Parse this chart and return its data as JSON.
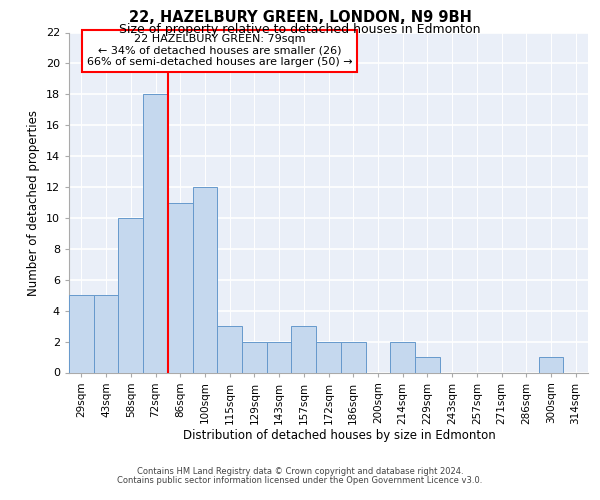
{
  "title1": "22, HAZELBURY GREEN, LONDON, N9 9BH",
  "title2": "Size of property relative to detached houses in Edmonton",
  "xlabel": "Distribution of detached houses by size in Edmonton",
  "ylabel": "Number of detached properties",
  "bar_labels": [
    "29sqm",
    "43sqm",
    "58sqm",
    "72sqm",
    "86sqm",
    "100sqm",
    "115sqm",
    "129sqm",
    "143sqm",
    "157sqm",
    "172sqm",
    "186sqm",
    "200sqm",
    "214sqm",
    "229sqm",
    "243sqm",
    "257sqm",
    "271sqm",
    "286sqm",
    "300sqm",
    "314sqm"
  ],
  "bar_values": [
    5,
    5,
    10,
    18,
    11,
    12,
    3,
    2,
    2,
    3,
    2,
    2,
    0,
    2,
    1,
    0,
    0,
    0,
    0,
    1,
    0
  ],
  "bar_color": "#c5d8ee",
  "bar_edge_color": "#6699cc",
  "red_line_index": 3,
  "annotation_line1": "22 HAZELBURY GREEN: 79sqm",
  "annotation_line2": "← 34% of detached houses are smaller (26)",
  "annotation_line3": "66% of semi-detached houses are larger (50) →",
  "ylim_max": 22,
  "yticks": [
    0,
    2,
    4,
    6,
    8,
    10,
    12,
    14,
    16,
    18,
    20,
    22
  ],
  "background_color": "#eaeff8",
  "grid_color": "#ffffff",
  "footer1": "Contains HM Land Registry data © Crown copyright and database right 2024.",
  "footer2": "Contains public sector information licensed under the Open Government Licence v3.0."
}
